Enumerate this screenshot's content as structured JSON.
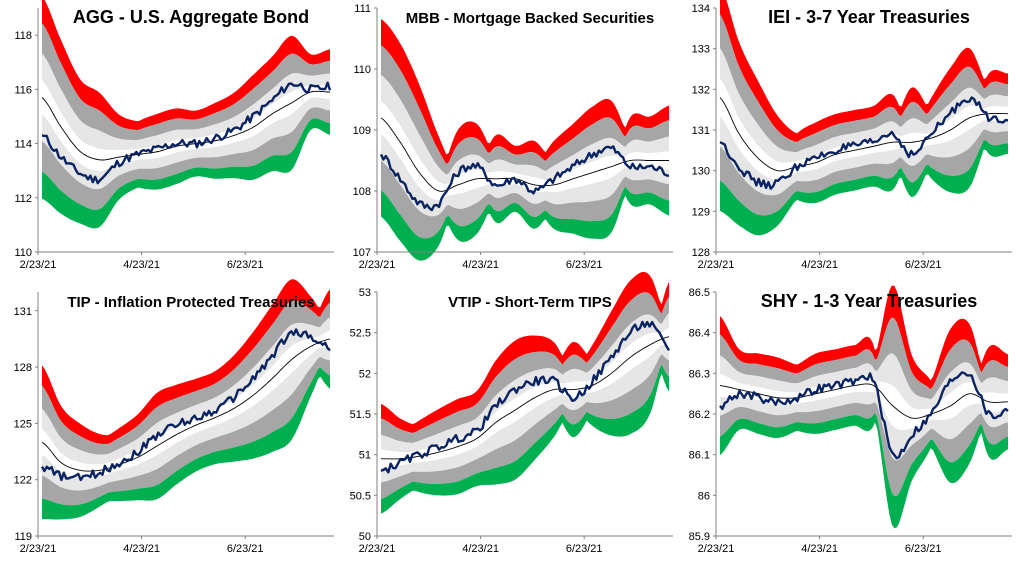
{
  "colors": {
    "red_band": "#ff0000",
    "dark_gray_band": "#a6a6a6",
    "light_gray_band": "#e6e6e6",
    "white_band": "#ffffff",
    "green_band": "#00b050",
    "price_line": "#0a2463",
    "mean_line": "#000000",
    "axis": "#808080"
  },
  "chart_data": [
    {
      "type": "area",
      "title": "AGG - U.S. Aggregate Bond",
      "x_ticks": [
        "2/23/21",
        "4/23/21",
        "6/23/21"
      ],
      "y_ticks": [
        "110",
        "112",
        "114",
        "116",
        "118"
      ],
      "ylim": [
        110,
        119
      ],
      "grid": false,
      "series": [
        {
          "values": [
            114.3,
            113.5,
            112.9,
            112.7,
            113.3,
            113.6,
            113.8,
            114.0,
            114.0,
            114.2,
            114.5,
            115.0,
            115.6,
            116.2,
            116.0,
            116.1
          ]
        },
        {
          "values": [
            115.7,
            114.6,
            113.7,
            113.4,
            113.5,
            113.6,
            113.7,
            113.9,
            114.0,
            114.1,
            114.3,
            114.6,
            115.1,
            115.5,
            115.9,
            115.9
          ]
        }
      ]
    },
    {
      "type": "area",
      "title": "MBB - Mortgage Backed Securities",
      "x_ticks": [
        "2/23/21",
        "4/23/21",
        "6/23/21"
      ],
      "y_ticks": [
        "107",
        "108",
        "109",
        "110",
        "111"
      ],
      "ylim": [
        107,
        111
      ],
      "grid": false,
      "series": [
        {
          "values": [
            108.6,
            108.2,
            107.8,
            107.8,
            108.3,
            108.4,
            108.1,
            108.2,
            108.0,
            108.2,
            108.4,
            108.6,
            108.7,
            108.4,
            108.4,
            108.3
          ]
        },
        {
          "values": [
            109.2,
            108.8,
            108.3,
            108.0,
            108.1,
            108.2,
            108.2,
            108.2,
            108.1,
            108.1,
            108.2,
            108.3,
            108.4,
            108.5,
            108.5,
            108.5
          ]
        }
      ]
    },
    {
      "type": "area",
      "title": "IEI - 3-7 Year Treasuries",
      "x_ticks": [
        "2/23/21",
        "4/23/21",
        "6/23/21"
      ],
      "y_ticks": [
        "128",
        "129",
        "130",
        "131",
        "132",
        "133",
        "134"
      ],
      "ylim": [
        128,
        134
      ],
      "grid": false,
      "series": [
        {
          "values": [
            130.7,
            130.1,
            129.7,
            129.7,
            130.1,
            130.3,
            130.5,
            130.6,
            130.7,
            130.9,
            130.4,
            130.9,
            131.4,
            131.8,
            131.3,
            131.3
          ]
        },
        {
          "values": [
            131.8,
            130.9,
            130.3,
            130.0,
            130.1,
            130.2,
            130.4,
            130.5,
            130.6,
            130.7,
            130.7,
            130.8,
            131.0,
            131.3,
            131.4,
            131.4
          ]
        }
      ]
    },
    {
      "type": "area",
      "title": "TIP - Inflation Protected Treasuries",
      "x_ticks": [
        "2/23/21",
        "4/23/21",
        "6/23/21"
      ],
      "y_ticks": [
        "119",
        "122",
        "125",
        "128",
        "131"
      ],
      "ylim": [
        119,
        132
      ],
      "grid": false,
      "series": [
        {
          "values": [
            122.7,
            122.2,
            122.1,
            122.4,
            122.9,
            123.5,
            124.4,
            124.9,
            125.3,
            125.7,
            126.4,
            127.4,
            128.6,
            129.8,
            129.6,
            129.0
          ]
        },
        {
          "values": [
            124.0,
            122.9,
            122.5,
            122.5,
            122.8,
            123.2,
            123.8,
            124.4,
            124.9,
            125.3,
            125.8,
            126.5,
            127.4,
            128.4,
            129.1,
            129.5
          ]
        }
      ]
    },
    {
      "type": "area",
      "title": "VTIP - Short-Term TIPS",
      "x_ticks": [
        "2/23/21",
        "4/23/21",
        "6/23/21"
      ],
      "y_ticks": [
        "50",
        "50.5",
        "51",
        "51.5",
        "52",
        "52.5",
        "53"
      ],
      "ylim": [
        50,
        53
      ],
      "grid": false,
      "series": [
        {
          "values": [
            50.8,
            50.9,
            51.0,
            51.1,
            51.2,
            51.3,
            51.6,
            51.8,
            51.9,
            51.9,
            51.7,
            51.9,
            52.2,
            52.5,
            52.6,
            52.3
          ]
        },
        {
          "values": [
            50.95,
            50.95,
            50.98,
            51.03,
            51.1,
            51.2,
            51.4,
            51.55,
            51.7,
            51.8,
            51.8,
            51.85,
            52.0,
            52.2,
            52.35,
            52.45
          ]
        }
      ]
    },
    {
      "type": "area",
      "title": "SHY - 1-3 Year Treasuries",
      "x_ticks": [
        "2/23/21",
        "4/23/21",
        "6/23/21"
      ],
      "y_ticks": [
        "85.9",
        "86",
        "86.1",
        "86.2",
        "86.3",
        "86.4",
        "86.5"
      ],
      "ylim": [
        85.9,
        86.5
      ],
      "grid": false,
      "series": [
        {
          "values": [
            86.22,
            86.25,
            86.24,
            86.23,
            86.24,
            86.26,
            86.27,
            86.28,
            86.28,
            86.1,
            86.15,
            86.2,
            86.28,
            86.3,
            86.2,
            86.21
          ]
        },
        {
          "values": [
            86.27,
            86.26,
            86.25,
            86.24,
            86.24,
            86.25,
            86.26,
            86.27,
            86.27,
            86.22,
            86.19,
            86.2,
            86.22,
            86.25,
            86.23,
            86.23
          ]
        }
      ]
    }
  ]
}
